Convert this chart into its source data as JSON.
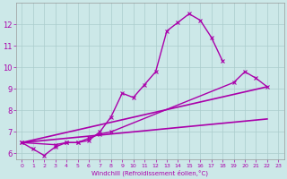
{
  "xlabel": "Windchill (Refroidissement éolien,°C)",
  "background_color": "#cce8e8",
  "grid_color": "#aacccc",
  "line_color": "#aa00aa",
  "xlim": [
    -0.5,
    23.5
  ],
  "ylim": [
    5.7,
    13.0
  ],
  "yticks": [
    6,
    7,
    8,
    9,
    10,
    11,
    12
  ],
  "xticks": [
    0,
    1,
    2,
    3,
    4,
    5,
    6,
    7,
    8,
    9,
    10,
    11,
    12,
    13,
    14,
    15,
    16,
    17,
    18,
    19,
    20,
    21,
    22,
    23
  ],
  "series": [
    {
      "x": [
        0,
        1,
        2,
        3,
        4,
        5,
        6,
        7,
        8,
        9,
        10,
        11,
        12,
        13,
        14,
        15,
        16,
        17,
        18
      ],
      "y": [
        6.5,
        6.2,
        5.9,
        6.3,
        6.5,
        6.5,
        6.6,
        7.0,
        7.7,
        8.8,
        8.6,
        9.2,
        9.8,
        11.7,
        12.1,
        12.5,
        12.2,
        11.4,
        10.3
      ],
      "style": "-",
      "marker": "x",
      "markersize": 3,
      "linewidth": 1.0
    },
    {
      "x": [
        0,
        3,
        4,
        5,
        6,
        7,
        8,
        19,
        20,
        21,
        22
      ],
      "y": [
        6.5,
        6.4,
        6.5,
        6.5,
        6.7,
        6.9,
        7.0,
        9.3,
        9.8,
        9.5,
        9.1
      ],
      "style": "-",
      "marker": "x",
      "markersize": 3,
      "linewidth": 1.0
    },
    {
      "x": [
        0,
        22
      ],
      "y": [
        6.5,
        7.6
      ],
      "style": "-",
      "marker": null,
      "markersize": 0,
      "linewidth": 1.2
    },
    {
      "x": [
        0,
        22
      ],
      "y": [
        6.5,
        9.1
      ],
      "style": "-",
      "marker": null,
      "markersize": 0,
      "linewidth": 1.2
    }
  ]
}
